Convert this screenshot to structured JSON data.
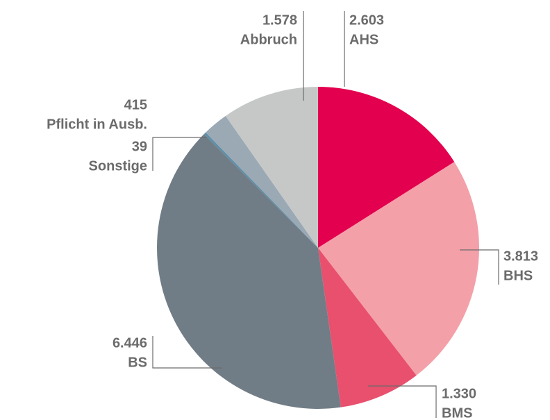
{
  "chart_data": {
    "type": "pie",
    "categories": [
      "AHS",
      "BHS",
      "BMS",
      "BS",
      "Sonstige",
      "Pflicht in Ausb.",
      "Abbruch"
    ],
    "values": [
      2603,
      3813,
      1330,
      6446,
      39,
      415,
      1578
    ],
    "value_labels": [
      "2.603",
      "3.813",
      "1.330",
      "6.446",
      "39",
      "415",
      "1.578"
    ],
    "colors": [
      "#e3004f",
      "#f4a0a8",
      "#e8506e",
      "#717d86",
      "#5f8fa8",
      "#9aa9b4",
      "#c6c8c8"
    ]
  }
}
